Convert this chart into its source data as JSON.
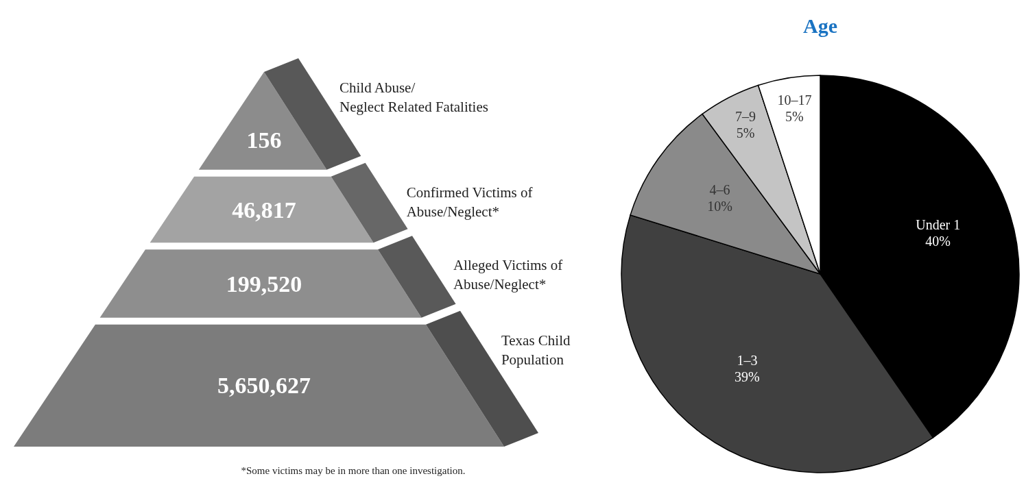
{
  "chart_data": [
    {
      "type": "other",
      "categories": [
        "Child Abuse/\nNeglect Related Fatalities",
        "Confirmed Victims of\nAbuse/Neglect*",
        "Alleged Victims of\nAbuse/Neglect*",
        "Texas Child\nPopulation"
      ],
      "colors": [
        "#8c8c8c",
        "#a3a3a3",
        "#8e8e8e",
        "#7c7c7c"
      ],
      "value_labels": [
        "156",
        "46,817",
        "199,520",
        "5,650,627"
      ],
      "annotations": [
        "*Some victims may be in more than one investigation."
      ]
    },
    {
      "type": "pie",
      "title": "Age",
      "categories": [
        "Under 1",
        "1–3",
        "4–6",
        "7–9",
        "10–17"
      ],
      "values": [
        40,
        39,
        10,
        5,
        5
      ],
      "colors": [
        "#000000",
        "#404040",
        "#8a8a8a",
        "#c4c4c4",
        "#ffffff"
      ],
      "value_labels": [
        "40%",
        "39%",
        "10%",
        "5%",
        "5%"
      ]
    }
  ]
}
